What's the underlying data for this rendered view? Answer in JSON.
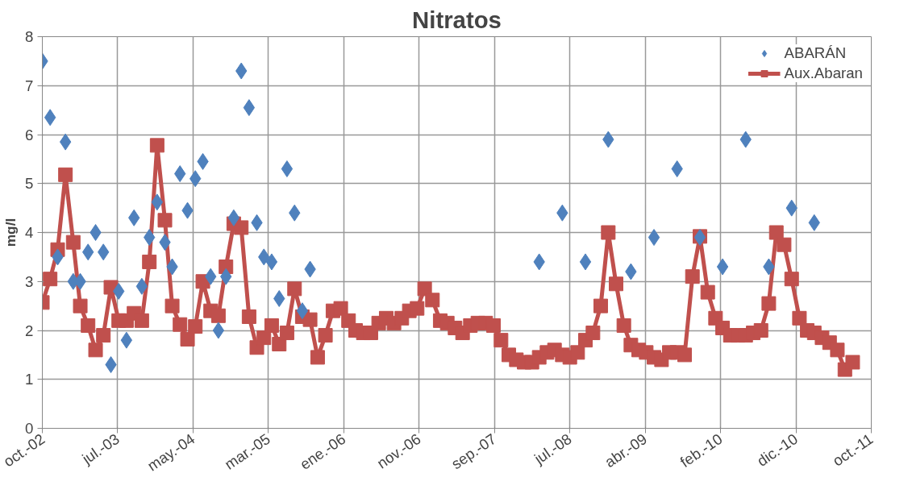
{
  "chart_data": {
    "type": "line",
    "title": "Nitratos",
    "ylabel": "mg/l",
    "xlim": [
      "2002-10-01",
      "2011-10-14"
    ],
    "xticks": [
      {
        "value": "2002-10-01",
        "label": "oct.-02"
      },
      {
        "value": "2003-07-28",
        "label": "jul.-03"
      },
      {
        "value": "2004-05-23",
        "label": "may.-04"
      },
      {
        "value": "2005-03-19",
        "label": "mar.-05"
      },
      {
        "value": "2006-01-13",
        "label": "ene.-06"
      },
      {
        "value": "2006-11-09",
        "label": "nov.-06"
      },
      {
        "value": "2007-09-05",
        "label": "sep.-07"
      },
      {
        "value": "2008-07-01",
        "label": "jul.-08"
      },
      {
        "value": "2009-04-27",
        "label": "abr.-09"
      },
      {
        "value": "2010-02-21",
        "label": "feb.-10"
      },
      {
        "value": "2010-12-18",
        "label": "dic.-10"
      },
      {
        "value": "2011-10-14",
        "label": "oct.-11"
      }
    ],
    "ylim": [
      0,
      8
    ],
    "yticks": [
      0,
      1,
      2,
      3,
      4,
      5,
      6,
      7,
      8
    ],
    "grid": true,
    "legend": "top right",
    "series": [
      {
        "name": "ABARÁN",
        "type": "scatter",
        "marker": "diamond",
        "color": "#4f81bd",
        "x": [
          "2002-10-01",
          "2002-11-01",
          "2002-12-01",
          "2003-01-01",
          "2003-02-01",
          "2003-03-01",
          "2003-04-01",
          "2003-05-01",
          "2003-06-01",
          "2003-07-01",
          "2003-08-01",
          "2003-09-01",
          "2003-10-01",
          "2003-11-01",
          "2003-12-01",
          "2004-01-01",
          "2004-02-01",
          "2004-03-01",
          "2004-04-01",
          "2004-05-01",
          "2004-06-01",
          "2004-07-01",
          "2004-08-01",
          "2004-09-01",
          "2004-10-01",
          "2004-11-01",
          "2004-12-01",
          "2005-01-01",
          "2005-02-01",
          "2005-03-01",
          "2005-04-01",
          "2005-05-01",
          "2005-06-01",
          "2005-07-01",
          "2005-08-01",
          "2005-09-01",
          "2008-03-01",
          "2008-06-01",
          "2008-09-01",
          "2008-12-01",
          "2009-03-01",
          "2009-06-01",
          "2009-09-01",
          "2009-12-01",
          "2010-03-01",
          "2010-06-01",
          "2010-09-01",
          "2010-12-01",
          "2011-03-01"
        ],
        "values": [
          7.5,
          6.35,
          3.5,
          5.85,
          3.0,
          3.0,
          3.6,
          4.0,
          3.6,
          1.3,
          2.8,
          1.8,
          4.3,
          2.9,
          3.9,
          4.62,
          3.8,
          3.3,
          5.2,
          4.45,
          5.1,
          5.45,
          3.1,
          2.0,
          3.1,
          4.3,
          7.3,
          6.55,
          4.2,
          3.5,
          3.4,
          2.65,
          5.3,
          4.4,
          2.4,
          3.25,
          3.4,
          4.4,
          3.4,
          5.9,
          3.2,
          3.9,
          5.3,
          3.9,
          3.3,
          5.9,
          3.3,
          4.5,
          4.2
        ]
      },
      {
        "name": "Aux.Abaran",
        "marker": "square",
        "line_style": "solid",
        "color": "#c0504d",
        "x": [
          "2002-10-01",
          "2002-11-01",
          "2002-12-01",
          "2003-01-01",
          "2003-02-01",
          "2003-03-01",
          "2003-04-01",
          "2003-05-01",
          "2003-06-01",
          "2003-07-01",
          "2003-08-01",
          "2003-09-01",
          "2003-10-01",
          "2003-11-01",
          "2003-12-01",
          "2004-01-01",
          "2004-02-01",
          "2004-03-01",
          "2004-04-01",
          "2004-05-01",
          "2004-06-01",
          "2004-07-01",
          "2004-08-01",
          "2004-09-01",
          "2004-10-01",
          "2004-11-01",
          "2004-12-01",
          "2005-01-01",
          "2005-02-01",
          "2005-03-01",
          "2005-04-01",
          "2005-05-01",
          "2005-06-01",
          "2005-07-01",
          "2005-08-01",
          "2005-09-01",
          "2005-10-01",
          "2005-11-01",
          "2005-12-01",
          "2006-01-01",
          "2006-02-01",
          "2006-03-01",
          "2006-04-01",
          "2006-05-01",
          "2006-06-01",
          "2006-07-01",
          "2006-08-01",
          "2006-09-01",
          "2006-10-01",
          "2006-11-01",
          "2006-12-01",
          "2007-01-01",
          "2007-02-01",
          "2007-03-01",
          "2007-04-01",
          "2007-05-01",
          "2007-06-01",
          "2007-07-01",
          "2007-08-01",
          "2007-09-01",
          "2007-10-01",
          "2007-11-01",
          "2007-12-01",
          "2008-01-01",
          "2008-02-01",
          "2008-03-01",
          "2008-04-01",
          "2008-05-01",
          "2008-06-01",
          "2008-07-01",
          "2008-08-01",
          "2008-09-01",
          "2008-10-01",
          "2008-11-01",
          "2008-12-01",
          "2009-01-01",
          "2009-02-01",
          "2009-03-01",
          "2009-04-01",
          "2009-05-01",
          "2009-06-01",
          "2009-07-01",
          "2009-08-01",
          "2009-09-01",
          "2009-10-01",
          "2009-11-01",
          "2009-12-01",
          "2010-01-01",
          "2010-02-01",
          "2010-03-01",
          "2010-04-01",
          "2010-05-01",
          "2010-06-01",
          "2010-07-01",
          "2010-08-01",
          "2010-09-01",
          "2010-10-01",
          "2010-11-01",
          "2010-12-01",
          "2011-01-01",
          "2011-02-01",
          "2011-03-01",
          "2011-04-01",
          "2011-05-01",
          "2011-06-01",
          "2011-07-01",
          "2011-08-01"
        ],
        "values": [
          2.57,
          3.05,
          3.65,
          5.18,
          3.8,
          2.5,
          2.1,
          1.6,
          1.9,
          2.88,
          2.2,
          2.2,
          2.35,
          2.2,
          3.4,
          5.78,
          4.25,
          2.5,
          2.12,
          1.82,
          2.08,
          3.0,
          2.4,
          2.3,
          3.3,
          4.18,
          4.1,
          2.28,
          1.65,
          1.85,
          2.1,
          1.72,
          1.95,
          2.85,
          2.28,
          2.22,
          1.45,
          1.9,
          2.4,
          2.45,
          2.2,
          2.0,
          1.95,
          1.95,
          2.15,
          2.25,
          2.15,
          2.25,
          2.4,
          2.45,
          2.85,
          2.62,
          2.2,
          2.15,
          2.05,
          1.95,
          2.1,
          2.15,
          2.15,
          2.1,
          1.8,
          1.5,
          1.4,
          1.35,
          1.35,
          1.45,
          1.55,
          1.6,
          1.5,
          1.45,
          1.55,
          1.8,
          1.95,
          2.5,
          4.0,
          2.95,
          2.1,
          1.7,
          1.6,
          1.55,
          1.45,
          1.4,
          1.55,
          1.55,
          1.5,
          3.1,
          3.92,
          2.78,
          2.25,
          2.05,
          1.9,
          1.9,
          1.9,
          1.95,
          2.0,
          2.55,
          4.0,
          3.75,
          3.05,
          2.25,
          2.0,
          1.95,
          1.85,
          1.75,
          1.6,
          1.2,
          1.35
        ]
      }
    ]
  }
}
